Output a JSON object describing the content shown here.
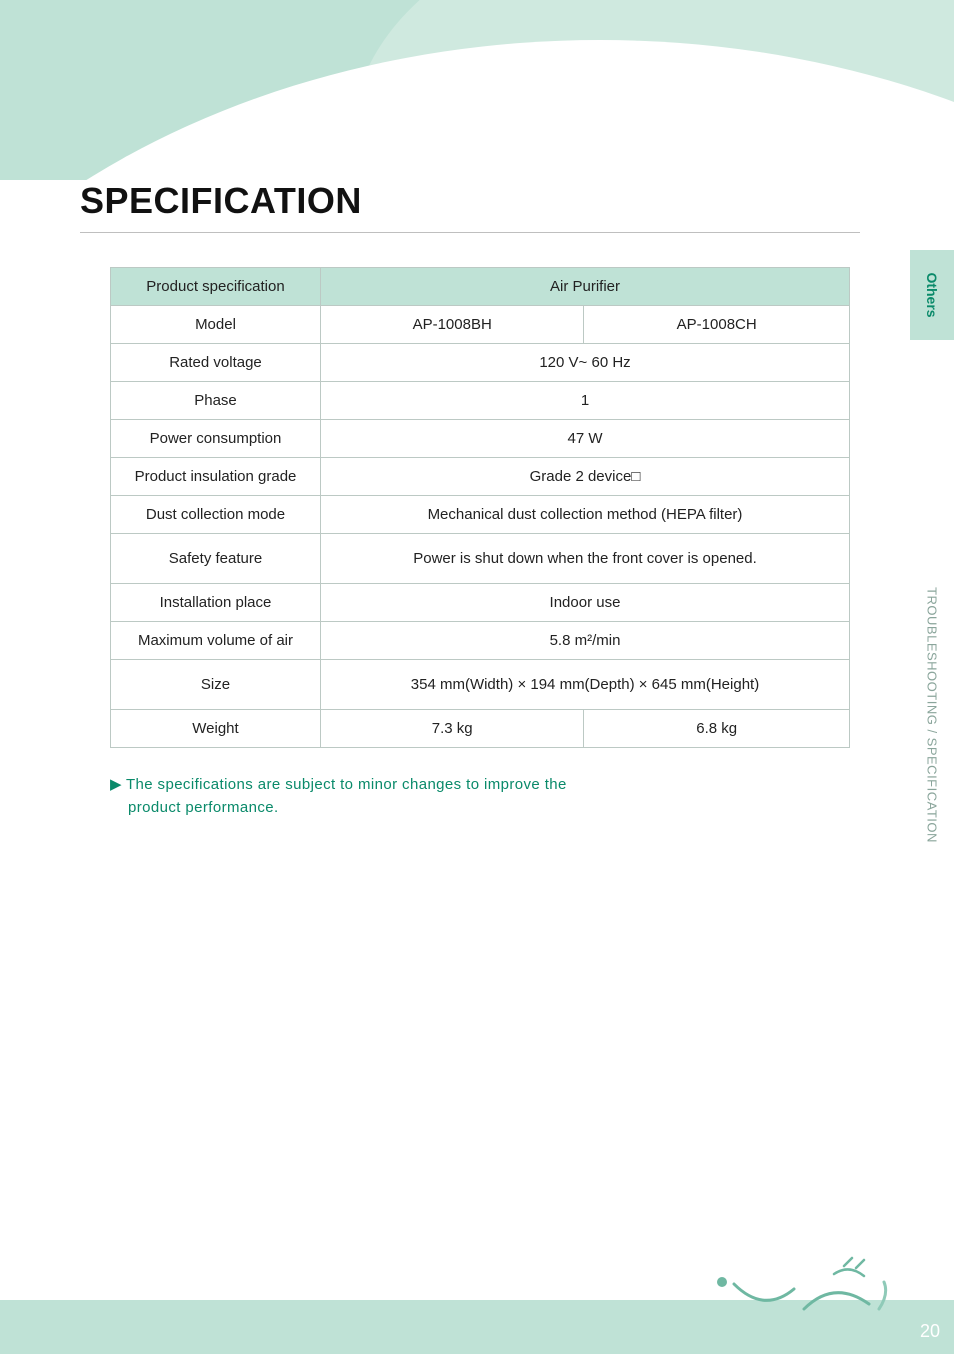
{
  "page": {
    "title": "SPECIFICATION",
    "page_number": "20"
  },
  "side_tab": {
    "top_label": "Others",
    "bottom_label": "TROUBLESHOOTING  /  SPECIFICATION"
  },
  "table": {
    "header": {
      "spec_label": "Product specification",
      "product_type": "Air Purifier"
    },
    "rows": [
      {
        "label": "Model",
        "value_a": "AP-1008BH",
        "value_b": "AP-1008CH",
        "split": true
      },
      {
        "label": "Rated voltage",
        "value": "120 V~  60 Hz"
      },
      {
        "label": "Phase",
        "value": "1"
      },
      {
        "label": "Power consumption",
        "value": "47 W"
      },
      {
        "label": "Product insulation grade",
        "value": "Grade 2 device□"
      },
      {
        "label": "Dust collection mode",
        "value": "Mechanical dust collection method (HEPA filter)"
      },
      {
        "label": "Safety feature",
        "value": "Power is shut down when the front cover is opened.",
        "tall": true
      },
      {
        "label": "Installation place",
        "value": "Indoor use"
      },
      {
        "label": "Maximum volume of air",
        "value": "5.8 m²/min"
      },
      {
        "label": "Size",
        "value": "354 mm(Width) × 194 mm(Depth) × 645 mm(Height)",
        "tall": true
      },
      {
        "label": "Weight",
        "value_a": "7.3 kg",
        "value_b": "6.8 kg",
        "split": true
      }
    ]
  },
  "note": {
    "line1": "The specifications are subject to minor changes to improve the",
    "line2": "product performance."
  },
  "colors": {
    "mint": "#bfe2d6",
    "mint_light": "#d6ece3",
    "teal_text": "#0a8a6a",
    "gray_text": "#8aa59b",
    "border": "#bcc9c4",
    "heading": "#111111",
    "body_text": "#222222",
    "white": "#ffffff"
  }
}
